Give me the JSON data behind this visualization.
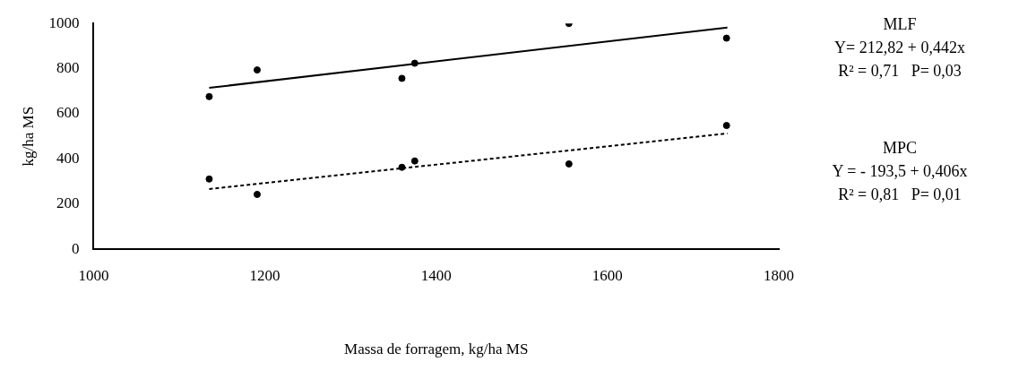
{
  "chart_data": {
    "type": "scatter",
    "xlabel": "Massa de forragem, kg/ha MS",
    "ylabel": "kg/ha MS",
    "xlim": [
      1000,
      1800
    ],
    "xticks": [
      1000,
      1200,
      1400,
      1600,
      1800
    ],
    "ylim": [
      0,
      1000
    ],
    "yticks": [
      0,
      200,
      400,
      600,
      800,
      1000
    ],
    "grid": false,
    "legend": false,
    "series": [
      {
        "color": "#000000",
        "marker": "circle",
        "x": [
          1135,
          1191,
          1360,
          1375,
          1555,
          1739
        ],
        "values": [
          676,
          794,
          757,
          824,
          1000,
          935
        ]
      },
      {
        "color": "#000000",
        "marker": "circle",
        "x": [
          1135,
          1191,
          1360,
          1375,
          1555,
          1739
        ],
        "values": [
          311,
          243,
          363,
          391,
          378,
          548
        ]
      },
      {
        "type": "line",
        "color": "#000000",
        "line_style": "solid",
        "marker": "none",
        "x": [
          1135,
          1740
        ],
        "values": [
          715,
          982
        ]
      },
      {
        "type": "line",
        "color": "#000000",
        "line_style": "dashed",
        "marker": "none",
        "x": [
          1135,
          1740
        ],
        "values": [
          267,
          513
        ]
      }
    ],
    "annotations": [
      "MLF",
      "Y= 212,82 + 0,442x",
      "R² = 0,71   P= 0,03",
      "MPC",
      "Y = - 193,5 + 0,406x",
      "R² = 0,81   P= 0,01"
    ]
  }
}
